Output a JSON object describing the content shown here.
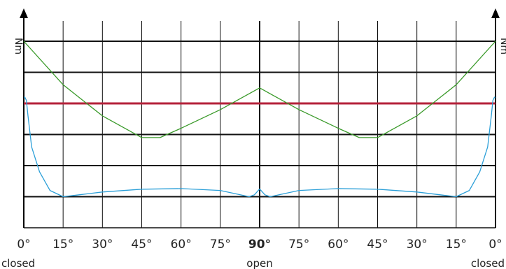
{
  "chart_data": {
    "type": "line",
    "title": "",
    "ylabel_left": "Nm",
    "ylabel_right": "Nm",
    "grid": true,
    "x_tick_labels": [
      "0°",
      "15°",
      "30°",
      "45°",
      "60°",
      "75°",
      "90°",
      "75°",
      "60°",
      "45°",
      "30°",
      "15°",
      "0°"
    ],
    "x_tick_strong_index": 6,
    "x_sublabels": [
      {
        "at_index": 0,
        "text": "closed"
      },
      {
        "at_index": 6,
        "text": "open"
      },
      {
        "at_index": 12,
        "text": "closed"
      }
    ],
    "x_range": [
      0,
      180
    ],
    "y_range": [
      0,
      6
    ],
    "series": [
      {
        "color": "#b4223a",
        "x": [
          0,
          0.8,
          179.2,
          180
        ],
        "y": [
          4,
          4,
          4,
          4
        ]
      },
      {
        "color": "#3a9a2a",
        "x": [
          0,
          15,
          30,
          45,
          52,
          60,
          75,
          90,
          105,
          120,
          128,
          135,
          150,
          165,
          180
        ],
        "y": [
          6.0,
          4.6,
          3.6,
          2.9,
          2.9,
          3.2,
          3.8,
          4.5,
          3.8,
          3.2,
          2.9,
          2.9,
          3.6,
          4.6,
          6.0
        ]
      },
      {
        "color": "#2b9fd8",
        "x": [
          0,
          0.4,
          1.0,
          1.6,
          3,
          6,
          10,
          15,
          20,
          30,
          45,
          60,
          75,
          86,
          88,
          90,
          92,
          94,
          105,
          120,
          135,
          150,
          160,
          165,
          170,
          174,
          177,
          178.4,
          179,
          179.6,
          180
        ],
        "y": [
          4.2,
          4.2,
          4.1,
          3.6,
          2.6,
          1.8,
          1.2,
          1.0,
          1.05,
          1.15,
          1.24,
          1.26,
          1.2,
          1.0,
          1.06,
          1.25,
          1.06,
          1.0,
          1.2,
          1.26,
          1.24,
          1.15,
          1.05,
          1.0,
          1.2,
          1.8,
          2.6,
          3.6,
          4.1,
          4.2,
          4.2
        ]
      }
    ]
  }
}
